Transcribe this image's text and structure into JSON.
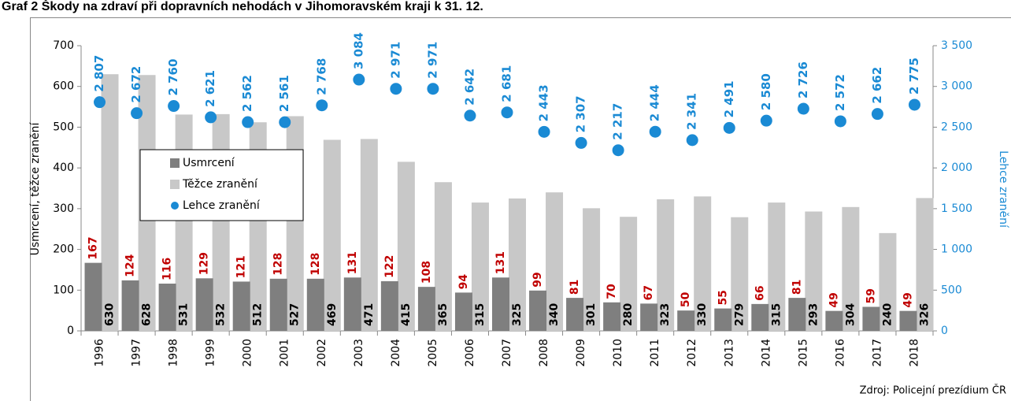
{
  "chart_data": {
    "type": "bar",
    "title": "Graf 2 Škody na zdraví při dopravních nehodách v Jihomoravském kraji k 31. 12.",
    "source": "Zdroj: Policejní prezídium ČR",
    "ylabel": "Usmrcení, těžce zranění",
    "y2label": "Lehce zranění",
    "categories": [
      "1996",
      "1997",
      "1998",
      "1999",
      "2000",
      "2001",
      "2002",
      "2003",
      "2004",
      "2005",
      "2006",
      "2007",
      "2008",
      "2009",
      "2010",
      "2011",
      "2012",
      "2013",
      "2014",
      "2015",
      "2016",
      "2017",
      "2018"
    ],
    "series": [
      {
        "name": "Usmrcení",
        "color": "#7f7f7f",
        "label_color": "#c00000",
        "values": [
          167,
          124,
          116,
          129,
          121,
          128,
          128,
          131,
          122,
          108,
          94,
          131,
          99,
          81,
          70,
          67,
          50,
          55,
          66,
          81,
          49,
          59,
          49
        ]
      },
      {
        "name": "Těžce zranění",
        "color": "#c8c8c8",
        "label_color": "#000000",
        "values": [
          630,
          628,
          531,
          532,
          512,
          527,
          469,
          471,
          415,
          365,
          315,
          325,
          340,
          301,
          280,
          323,
          330,
          279,
          315,
          293,
          304,
          240,
          326
        ]
      },
      {
        "name": "Lehce zranění",
        "color": "#1a8ad4",
        "label_color": "#1a8ad4",
        "axis": "y2",
        "values": [
          2807,
          2672,
          2760,
          2621,
          2562,
          2561,
          2768,
          3084,
          2971,
          2971,
          2642,
          2681,
          2443,
          2307,
          2217,
          2444,
          2341,
          2491,
          2580,
          2726,
          2572,
          2662,
          2775
        ],
        "value_labels": [
          "2 807",
          "2 672",
          "2 760",
          "2 621",
          "2 562",
          "2 561",
          "2 768",
          "3 084",
          "2 971",
          "2 971",
          "2 642",
          "2 681",
          "2 443",
          "2 307",
          "2 217",
          "2 444",
          "2 341",
          "2 491",
          "2 580",
          "2 726",
          "2 572",
          "2 662",
          "2 775"
        ]
      }
    ],
    "ylim": [
      0,
      700
    ],
    "yticks": [
      0,
      100,
      200,
      300,
      400,
      500,
      600,
      700
    ],
    "y2lim": [
      0,
      3500
    ],
    "y2ticks": [
      0,
      500,
      {
        "value": 1000,
        "label": "1 000"
      },
      {
        "value": 1500,
        "label": "1 500"
      },
      {
        "value": 2000,
        "label": "2 000"
      },
      {
        "value": 2500,
        "label": "2 500"
      },
      {
        "value": 3000,
        "label": "3 000"
      },
      {
        "value": 3500,
        "label": "3 500"
      }
    ]
  }
}
